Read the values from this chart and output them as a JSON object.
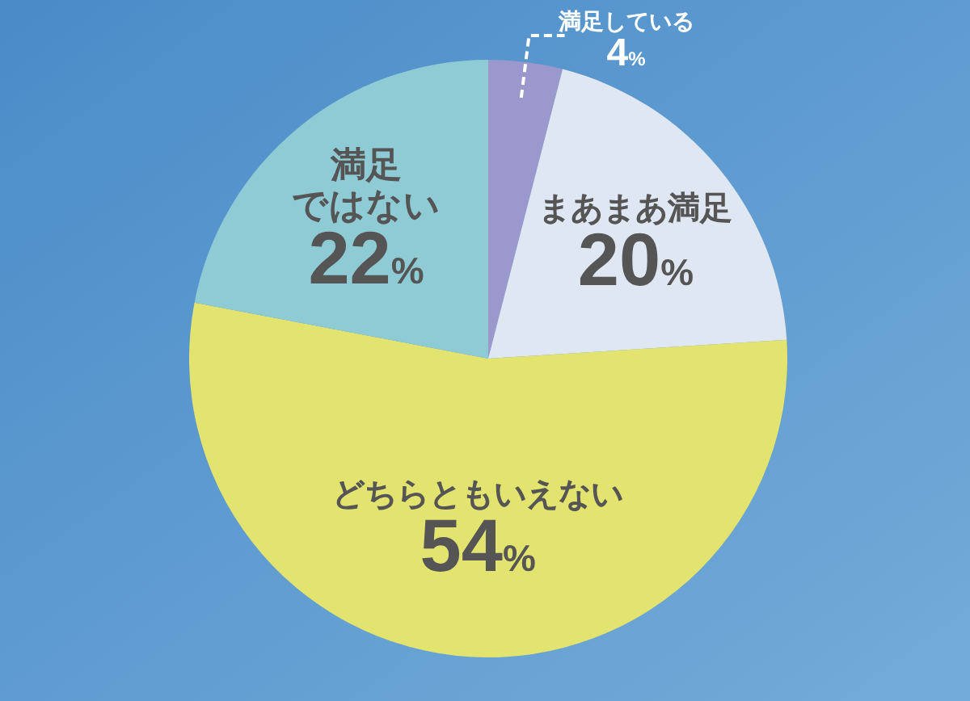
{
  "chart_data": {
    "type": "pie",
    "categories": [
      "満足している",
      "まあまあ満足",
      "どちらともいえない",
      "満足ではない"
    ],
    "values": [
      4,
      20,
      54,
      22
    ],
    "value_labels": [
      "4%",
      "20%",
      "54%",
      "22%"
    ],
    "colors": [
      "#9a98cc",
      "#dfe7f2",
      "#e3e46f",
      "#8fcbd4"
    ],
    "legend": false
  }
}
